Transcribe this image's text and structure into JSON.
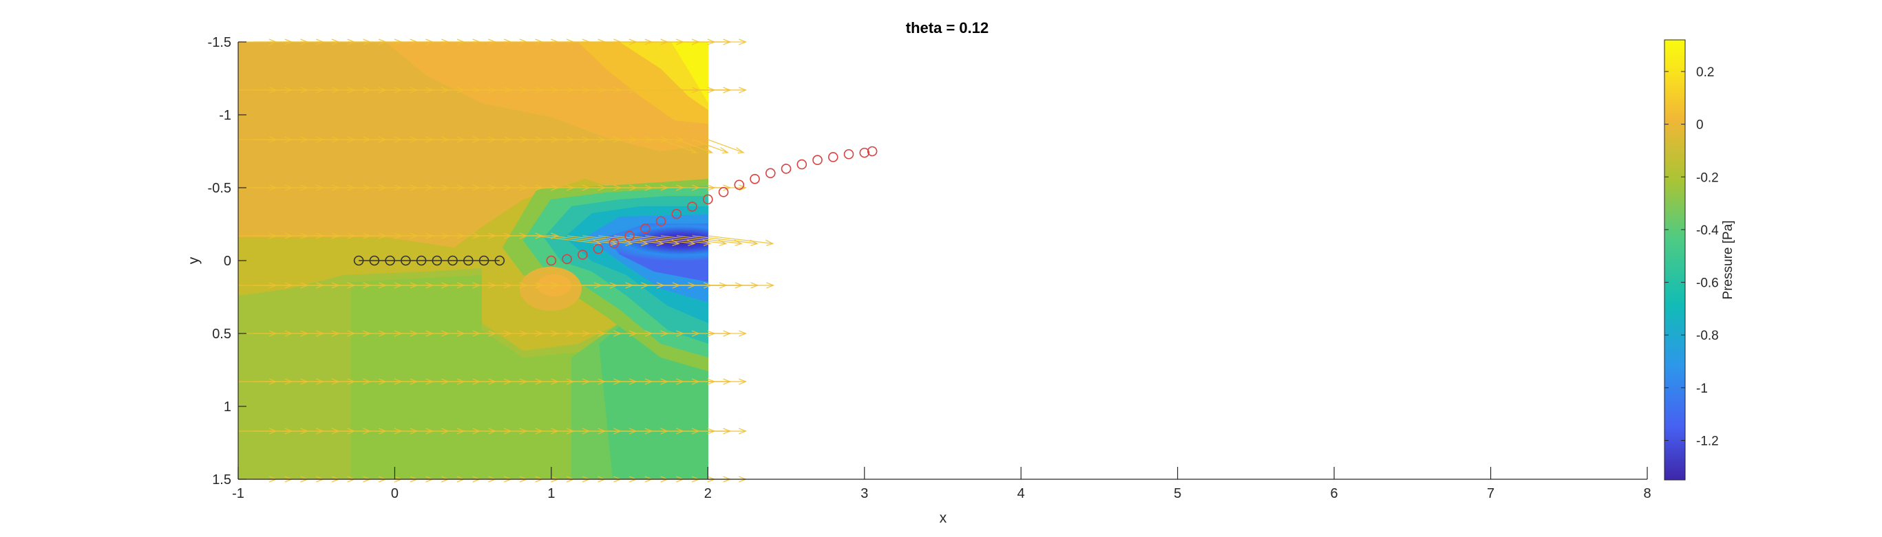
{
  "chart_data": {
    "type": "heatmap",
    "title": "theta = 0.12",
    "xlabel": "x",
    "ylabel": "y",
    "xlim": [
      -1,
      8
    ],
    "ylim": [
      -1.5,
      1.5
    ],
    "y_reversed": true,
    "x_ticks": [
      -1,
      0,
      1,
      2,
      3,
      4,
      5,
      6,
      7,
      8
    ],
    "y_ticks": [
      -1.5,
      -1,
      -0.5,
      0,
      0.5,
      1,
      1.5
    ],
    "x_tick_labels": [
      "-1",
      "0",
      "1",
      "2",
      "3",
      "4",
      "5",
      "6",
      "7",
      "8"
    ],
    "y_tick_labels": [
      "-1.5",
      "-1",
      "-0.5",
      "0",
      "0.5",
      "1",
      "1.5"
    ],
    "field_extent": {
      "x": [
        -1,
        2
      ],
      "y": [
        -1.5,
        1.5
      ]
    },
    "colorbar": {
      "label": "Pressure [Pa]",
      "range": [
        -1.35,
        0.32
      ],
      "ticks": [
        -1.2,
        -1,
        -0.8,
        -0.6,
        -0.4,
        -0.2,
        0,
        0.2
      ],
      "tick_labels": [
        "-1.2",
        "-1",
        "-0.8",
        "-0.6",
        "-0.4",
        "-0.2",
        "0",
        "0.2"
      ],
      "colormap": [
        "#3e26a8",
        "#4760f2",
        "#2d97ea",
        "#12bcb5",
        "#4fcb83",
        "#a9c435",
        "#f1b736",
        "#f9e01f",
        "#f9fb0e"
      ]
    },
    "vector_color": "#f0c030",
    "series": [
      {
        "marker": "circle-open",
        "connected": true,
        "color": "#333333",
        "x": [
          -0.23,
          -0.13,
          -0.03,
          0.07,
          0.17,
          0.27,
          0.37,
          0.47,
          0.57,
          0.67
        ],
        "y": [
          0,
          0,
          0,
          0,
          0,
          0,
          0,
          0,
          0,
          0
        ]
      },
      {
        "marker": "circle-open",
        "connected": false,
        "color": "#d94040",
        "x": [
          1.0,
          1.1,
          1.2,
          1.3,
          1.4,
          1.5,
          1.6,
          1.7,
          1.8,
          1.9,
          2.0,
          2.1,
          2.2,
          2.3,
          2.4,
          2.5,
          2.6,
          2.7,
          2.8,
          2.9,
          3.0,
          3.05
        ],
        "y": [
          0.0,
          -0.01,
          -0.04,
          -0.08,
          -0.12,
          -0.17,
          -0.22,
          -0.27,
          -0.32,
          -0.37,
          -0.42,
          -0.47,
          -0.52,
          -0.56,
          -0.6,
          -0.63,
          -0.66,
          -0.69,
          -0.71,
          -0.73,
          -0.74,
          -0.75
        ]
      }
    ]
  }
}
